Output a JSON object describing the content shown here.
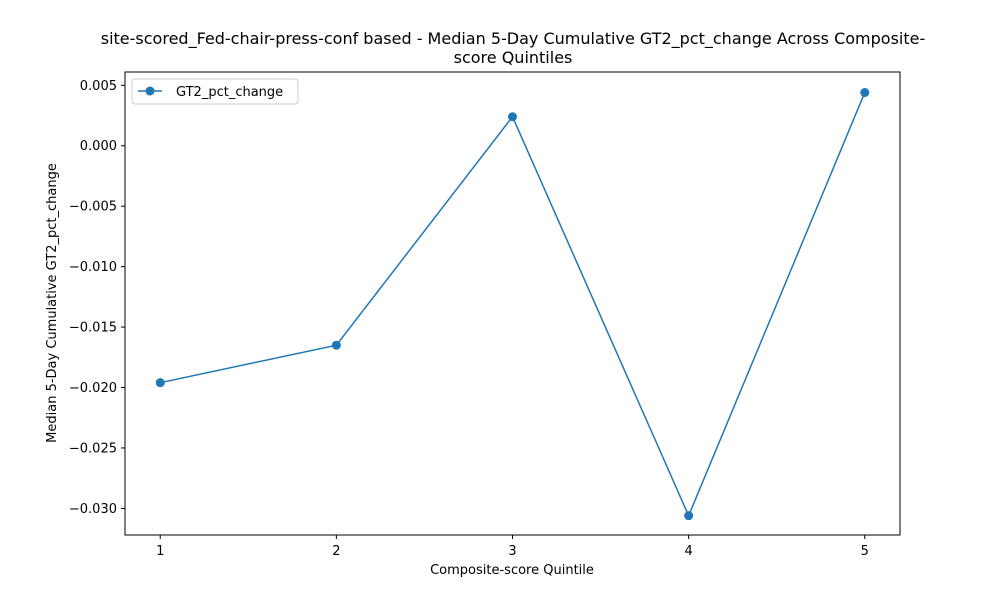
{
  "chart_data": {
    "type": "line",
    "title_line1": "site-scored_Fed-chair-press-conf based - Median 5-Day Cumulative GT2_pct_change Across Composite-",
    "title_line2": "score Quintiles",
    "xlabel": "Composite-score Quintile",
    "ylabel": "Median 5-Day Cumulative GT2_pct_change",
    "x": [
      1,
      2,
      3,
      4,
      5
    ],
    "xticks": [
      "1",
      "2",
      "3",
      "4",
      "5"
    ],
    "yticks": [
      "0.005",
      "0.000",
      "−0.005",
      "−0.010",
      "−0.015",
      "−0.020",
      "−0.025",
      "−0.030"
    ],
    "ytick_values": [
      0.005,
      0.0,
      -0.005,
      -0.01,
      -0.015,
      -0.02,
      -0.025,
      -0.03
    ],
    "xlim": [
      0.8,
      5.2
    ],
    "ylim": [
      -0.0322,
      0.0061
    ],
    "series": [
      {
        "name": "GT2_pct_change",
        "values": [
          -0.0196,
          -0.0165,
          0.0024,
          -0.0306,
          0.0044
        ]
      }
    ],
    "legend_position": "upper-left",
    "grid": false,
    "colors": {
      "series": "#1f77b4"
    }
  }
}
